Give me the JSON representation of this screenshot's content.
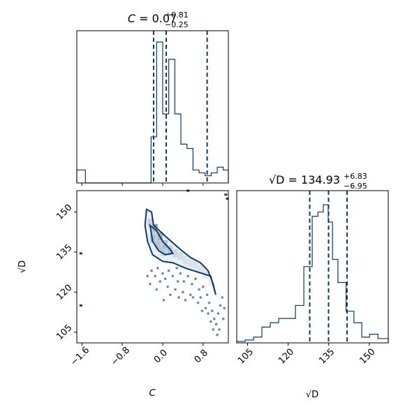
{
  "colors": {
    "main": "#0b3b66",
    "fill_light": "#d8e0ea",
    "fill_mid": "#9fb2c8",
    "fill_dark": "#4f6f92"
  },
  "chart_data": [
    {
      "id": "hist_C",
      "type": "histogram",
      "title_var": "C",
      "title_value": "0.07",
      "title_plus": "+0.81",
      "title_minus": "−0.25",
      "xlim": [
        -1.7,
        1.3
      ],
      "ylim": [
        0,
        1.0
      ],
      "bin_edges": [
        -1.7,
        -1.53,
        -1.36,
        -1.19,
        -1.02,
        -0.85,
        -0.68,
        -0.51,
        -0.34,
        -0.23,
        -0.12,
        0.0,
        0.12,
        0.24,
        0.36,
        0.48,
        0.6,
        0.72,
        0.84,
        0.96,
        1.08,
        1.2,
        1.3
      ],
      "counts": [
        0.09,
        0.0,
        0.0,
        0.0,
        0.0,
        0.0,
        0.0,
        0.0,
        0.0,
        0.32,
        0.98,
        0.48,
        0.86,
        0.48,
        0.27,
        0.24,
        0.09,
        0.07,
        0.05,
        0.07,
        0.11,
        0.09
      ],
      "quantiles": [
        -0.18,
        0.07,
        0.88
      ],
      "xticks": [
        -1.6,
        -0.8,
        0.0,
        0.8
      ]
    },
    {
      "id": "hist_sqrtD",
      "type": "histogram",
      "title_var": "√D",
      "title_value": "134.93",
      "title_plus": "+6.83",
      "title_minus": "−6.95",
      "xlim": [
        101,
        157
      ],
      "ylim": [
        0,
        1.0
      ],
      "bin_edges": [
        101,
        104.1,
        107.2,
        110.3,
        113.4,
        116.5,
        119.6,
        122.7,
        125.8,
        128.9,
        131,
        133,
        134.8,
        136.4,
        138.4,
        141.4,
        144.3,
        147.2,
        150.1,
        153.2,
        157
      ],
      "counts": [
        0.01,
        0.02,
        0.04,
        0.11,
        0.14,
        0.17,
        0.17,
        0.26,
        0.53,
        0.88,
        0.91,
        0.96,
        0.84,
        0.58,
        0.42,
        0.22,
        0.14,
        0.04,
        0.06,
        0.03
      ],
      "quantiles": [
        127.98,
        134.93,
        141.76
      ],
      "xticks": [
        105,
        120,
        135,
        150
      ],
      "xlabel": "√D"
    },
    {
      "id": "scatter_C_sqrtD",
      "type": "scatter",
      "xlim": [
        -1.7,
        1.3
      ],
      "ylim": [
        101,
        158
      ],
      "xticks": [
        -1.6,
        -0.8,
        0.0,
        0.8
      ],
      "yticks": [
        105,
        120,
        135,
        150
      ],
      "xlabel": "C",
      "ylabel": "√D",
      "contours": [
        {
          "level": "outer",
          "points": [
            [
              -0.32,
              151
            ],
            [
              -0.22,
              150
            ],
            [
              -0.18,
              145
            ],
            [
              0.05,
              141
            ],
            [
              0.35,
              136
            ],
            [
              0.55,
              133
            ],
            [
              0.75,
              131
            ],
            [
              0.9,
              128
            ],
            [
              1.0,
              123
            ],
            [
              1.05,
              119
            ],
            [
              0.95,
              126
            ],
            [
              0.7,
              127.5
            ],
            [
              0.45,
              129
            ],
            [
              0.2,
              131
            ],
            [
              0.0,
              131.5
            ],
            [
              -0.2,
              134
            ],
            [
              -0.3,
              139
            ],
            [
              -0.35,
              145
            ],
            [
              -0.32,
              151
            ]
          ]
        },
        {
          "level": "inner",
          "points": [
            [
              -0.25,
              145
            ],
            [
              -0.12,
              143
            ],
            [
              0.0,
              139
            ],
            [
              0.15,
              136
            ],
            [
              0.2,
              134.5
            ],
            [
              0.05,
              134
            ],
            [
              -0.08,
              135.5
            ],
            [
              -0.2,
              139
            ],
            [
              -0.25,
              145
            ]
          ]
        }
      ],
      "scatter_points": [
        [
          -0.22,
          128
        ],
        [
          -0.15,
          126
        ],
        [
          -0.1,
          129
        ],
        [
          0.0,
          127
        ],
        [
          0.05,
          125
        ],
        [
          0.12,
          128
        ],
        [
          0.2,
          126
        ],
        [
          0.28,
          129
        ],
        [
          0.35,
          127
        ],
        [
          0.42,
          124
        ],
        [
          0.5,
          126
        ],
        [
          0.58,
          123
        ],
        [
          0.65,
          125
        ],
        [
          0.72,
          121
        ],
        [
          0.8,
          122
        ],
        [
          0.88,
          119
        ],
        [
          0.92,
          116
        ],
        [
          0.98,
          113
        ],
        [
          1.02,
          110
        ],
        [
          1.06,
          108
        ],
        [
          1.1,
          112
        ],
        [
          1.14,
          115
        ],
        [
          1.18,
          118
        ],
        [
          0.9,
          112
        ],
        [
          0.95,
          109
        ],
        [
          1.0,
          106
        ],
        [
          -0.05,
          124
        ],
        [
          0.1,
          122
        ],
        [
          0.25,
          121
        ],
        [
          0.4,
          120
        ],
        [
          0.55,
          119
        ],
        [
          0.7,
          116
        ],
        [
          0.85,
          114
        ],
        [
          -0.3,
          126
        ],
        [
          -0.25,
          123
        ],
        [
          0.3,
          124
        ],
        [
          0.6,
          118
        ],
        [
          0.75,
          118
        ],
        [
          1.08,
          104
        ],
        [
          1.2,
          110
        ],
        [
          -0.12,
          121
        ],
        [
          0.15,
          119
        ],
        [
          0.45,
          117
        ],
        [
          0.78,
          113
        ],
        [
          1.12,
          106
        ],
        [
          1.22,
          114
        ],
        [
          0.02,
          117
        ],
        [
          0.32,
          118
        ]
      ],
      "outlier_points": [
        [
          -1.62,
          134.5
        ],
        [
          -1.62,
          115
        ],
        [
          1.25,
          156.5
        ],
        [
          1.28,
          155
        ],
        [
          0.5,
          158
        ]
      ]
    }
  ]
}
